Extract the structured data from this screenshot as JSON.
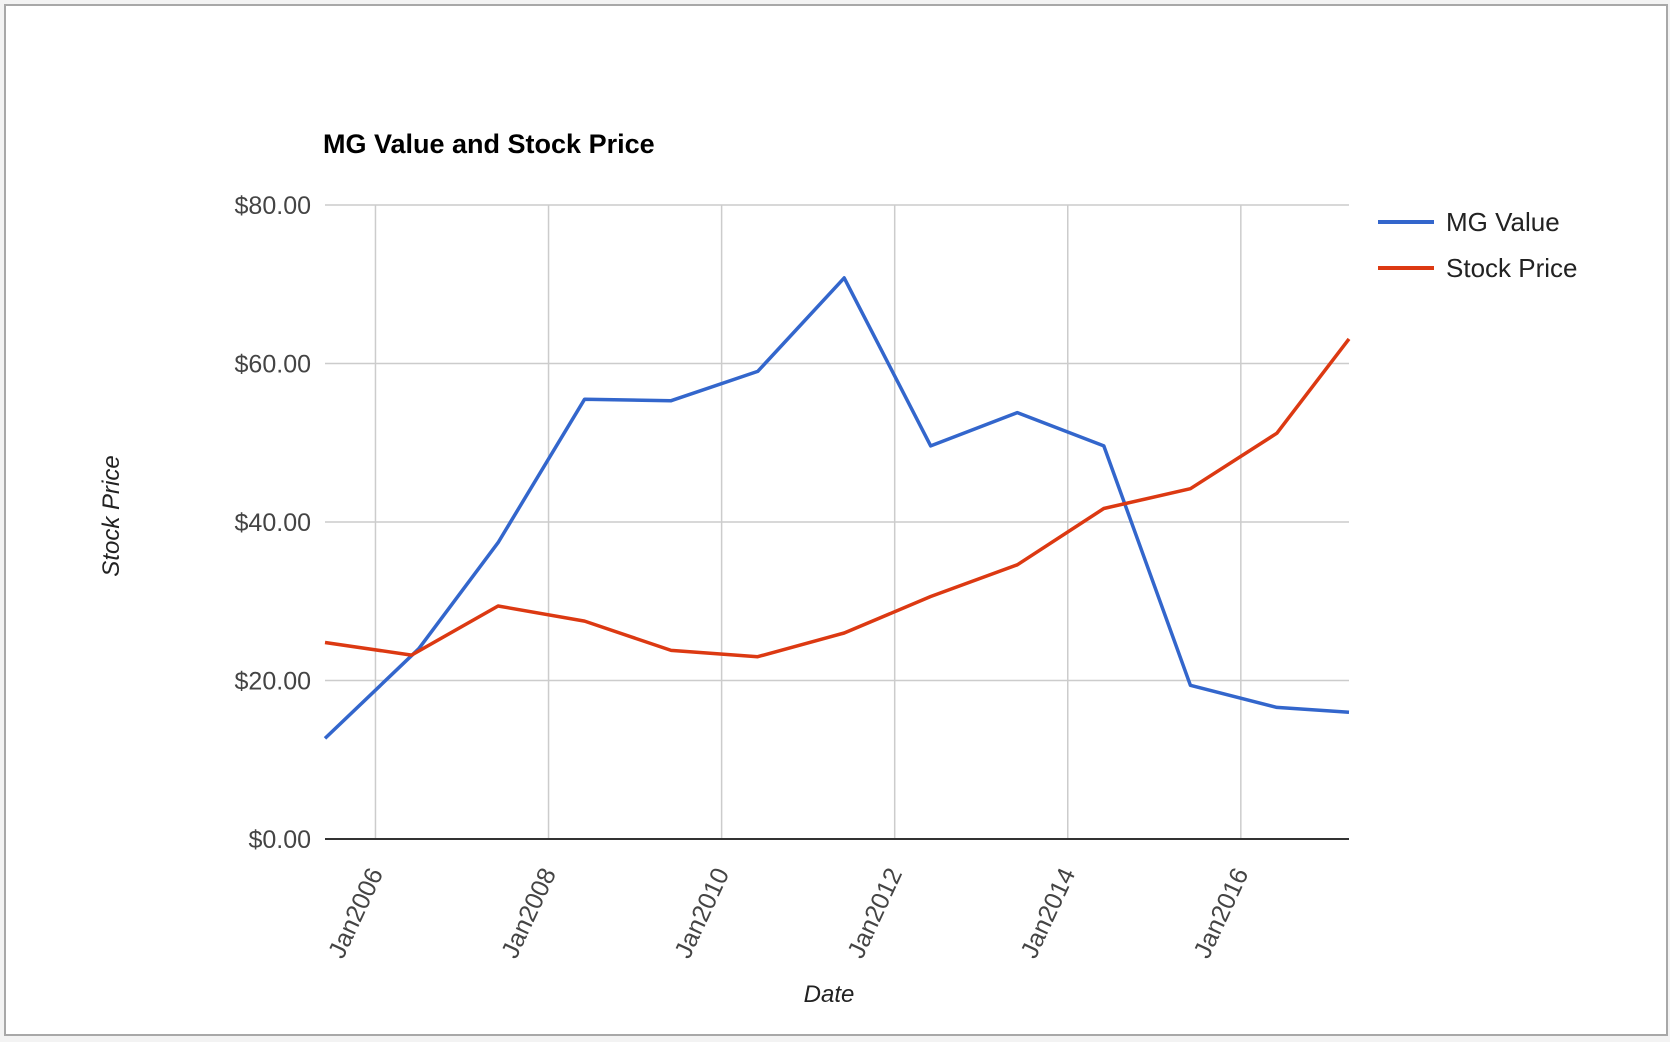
{
  "chart_data": {
    "type": "line",
    "title": "MG Value and Stock Price",
    "xlabel": "Date",
    "ylabel": "Stock Price",
    "x_ticks": [
      "Jan2006",
      "Jan2008",
      "Jan2010",
      "Jan2012",
      "Jan2014",
      "Jan2016"
    ],
    "y_ticks": [
      "$0.00",
      "$20.00",
      "$40.00",
      "$60.00",
      "$80.00"
    ],
    "ylim": [
      0,
      80
    ],
    "xlim": [
      "2005-06",
      "2017-04"
    ],
    "grid": true,
    "legend": "right",
    "series": [
      {
        "name": "MG Value",
        "color": "#3366cc",
        "points": [
          {
            "x": "2005-06",
            "y": 12.7
          },
          {
            "x": "2006-07",
            "y": 24.0
          },
          {
            "x": "2007-06",
            "y": 37.4
          },
          {
            "x": "2008-06",
            "y": 55.5
          },
          {
            "x": "2009-06",
            "y": 55.3
          },
          {
            "x": "2010-06",
            "y": 59.0
          },
          {
            "x": "2011-06",
            "y": 70.8
          },
          {
            "x": "2012-06",
            "y": 49.6
          },
          {
            "x": "2013-06",
            "y": 53.8
          },
          {
            "x": "2014-06",
            "y": 49.6
          },
          {
            "x": "2015-06",
            "y": 19.4
          },
          {
            "x": "2016-06",
            "y": 16.6
          },
          {
            "x": "2017-04",
            "y": 16.0
          }
        ]
      },
      {
        "name": "Stock Price",
        "color": "#dc3912",
        "points": [
          {
            "x": "2005-06",
            "y": 24.8
          },
          {
            "x": "2006-06",
            "y": 23.2
          },
          {
            "x": "2007-06",
            "y": 29.4
          },
          {
            "x": "2008-06",
            "y": 27.5
          },
          {
            "x": "2009-06",
            "y": 23.8
          },
          {
            "x": "2010-06",
            "y": 23.0
          },
          {
            "x": "2011-06",
            "y": 26.0
          },
          {
            "x": "2012-06",
            "y": 30.6
          },
          {
            "x": "2013-06",
            "y": 34.6
          },
          {
            "x": "2014-06",
            "y": 41.7
          },
          {
            "x": "2015-06",
            "y": 44.2
          },
          {
            "x": "2016-06",
            "y": 51.2
          },
          {
            "x": "2017-04",
            "y": 63.1
          }
        ]
      }
    ]
  }
}
